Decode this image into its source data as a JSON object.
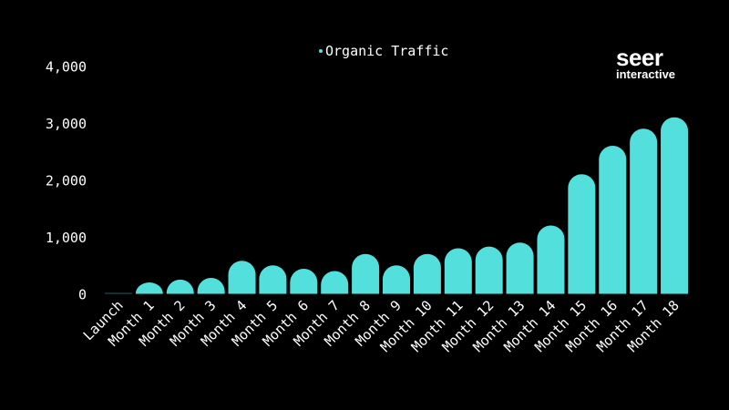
{
  "chart_data": {
    "type": "bar",
    "title": "",
    "xlabel": "",
    "ylabel": "",
    "legend": {
      "position": "top",
      "entries": [
        "Organic Traffic"
      ]
    },
    "series": [
      {
        "name": "Organic Traffic",
        "color": "#53dfdb",
        "values": [
          10,
          200,
          250,
          280,
          580,
          500,
          440,
          400,
          700,
          500,
          700,
          800,
          830,
          900,
          1200,
          2100,
          2600,
          2900,
          3100
        ]
      }
    ],
    "categories": [
      "Launch",
      "Month 1",
      "Month 2",
      "Month 3",
      "Month 4",
      "Month 5",
      "Month 6",
      "Month 7",
      "Month 8",
      "Month 9",
      "Month 10",
      "Month 11",
      "Month 12",
      "Month 13",
      "Month 14",
      "Month 15",
      "Month 16",
      "Month 17",
      "Month 18"
    ],
    "ylim": [
      0,
      4000
    ],
    "yticks": [
      0,
      1000,
      2000,
      3000,
      4000
    ],
    "ytick_labels": [
      "0",
      "1,000",
      "2,000",
      "3,000",
      "4,000"
    ],
    "grid": false,
    "background": "#000000"
  },
  "logo": {
    "line1": "seer",
    "line2": "interactive"
  }
}
